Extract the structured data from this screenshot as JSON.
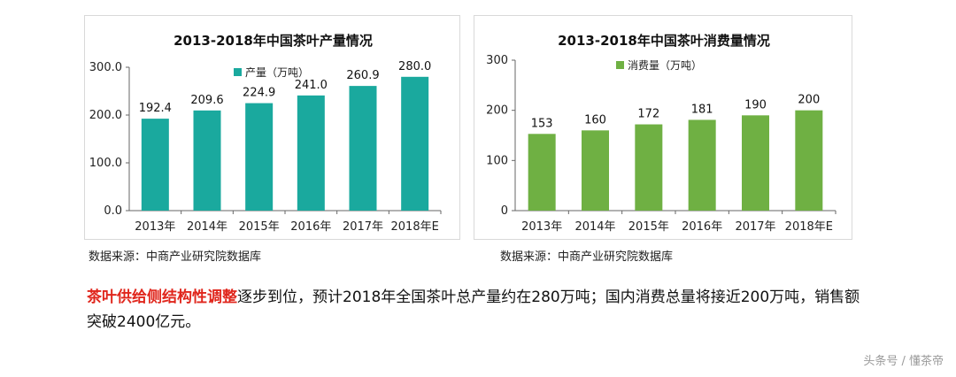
{
  "chart_data": [
    {
      "type": "bar",
      "title": "2013-2018年中国茶叶产量情况",
      "legend": "产量（万吨）",
      "legend_position": "top-center",
      "categories": [
        "2013年",
        "2014年",
        "2015年",
        "2016年",
        "2017年",
        "2018年E"
      ],
      "values": [
        192.4,
        209.6,
        224.9,
        241.0,
        260.9,
        280.0
      ],
      "value_labels": [
        "192.4",
        "209.6",
        "224.9",
        "241.0",
        "260.9",
        "280.0"
      ],
      "yticks": [
        "0.0",
        "100.0",
        "200.0",
        "300.0"
      ],
      "ylim": [
        0,
        300
      ],
      "grid": false,
      "color": "#1aa99e",
      "source": "数据来源：中商产业研究院数据库"
    },
    {
      "type": "bar",
      "title": "2013-2018年中国茶叶消费量情况",
      "legend": "消费量（万吨）",
      "legend_position": "top-center",
      "categories": [
        "2013年",
        "2014年",
        "2015年",
        "2016年",
        "2017年",
        "2018年E"
      ],
      "values": [
        153,
        160,
        172,
        181,
        190,
        200
      ],
      "value_labels": [
        "153",
        "160",
        "172",
        "181",
        "190",
        "200"
      ],
      "yticks": [
        "0",
        "100",
        "200",
        "300"
      ],
      "ylim": [
        0,
        300
      ],
      "grid": false,
      "color": "#6fb043",
      "source": "数据来源：中商产业研究院数据库"
    }
  ],
  "summary": {
    "highlight": "茶叶供给侧结构性调整",
    "rest": "逐步到位，预计2018年全国茶叶总产量约在280万吨；国内消费总量将接近200万吨，销售额突破2400亿元。"
  },
  "watermark": "头条号 / 懂茶帝"
}
